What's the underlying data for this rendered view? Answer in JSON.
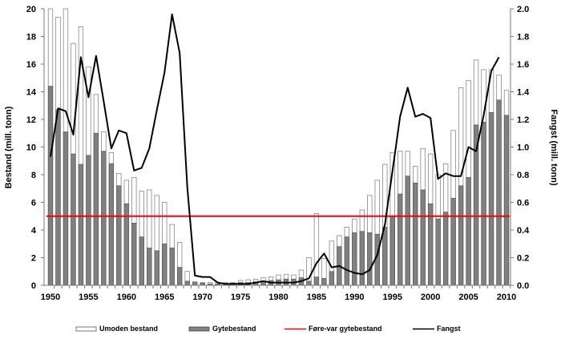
{
  "chart_data": {
    "type": "bar",
    "x": [
      1950,
      1951,
      1952,
      1953,
      1954,
      1955,
      1956,
      1957,
      1958,
      1959,
      1960,
      1961,
      1962,
      1963,
      1964,
      1965,
      1966,
      1967,
      1968,
      1969,
      1970,
      1971,
      1972,
      1973,
      1974,
      1975,
      1976,
      1977,
      1978,
      1979,
      1980,
      1981,
      1982,
      1983,
      1984,
      1985,
      1986,
      1987,
      1988,
      1989,
      1990,
      1991,
      1992,
      1993,
      1994,
      1995,
      1996,
      1997,
      1998,
      1999,
      2000,
      2001,
      2002,
      2003,
      2004,
      2005,
      2006,
      2007,
      2008,
      2009,
      2010
    ],
    "series": [
      {
        "name": "Umoden bestand",
        "kind": "bar-total-outline",
        "color": "#ffffff",
        "values": [
          21,
          19.4,
          21,
          17.5,
          18.7,
          15.8,
          13.8,
          11.1,
          9.6,
          8.1,
          7.6,
          7.8,
          6.8,
          6.9,
          6.5,
          6.0,
          4.4,
          3.1,
          1.0,
          0.25,
          0.2,
          0.2,
          0.2,
          0.2,
          0.2,
          0.35,
          0.4,
          0.45,
          0.55,
          0.6,
          0.75,
          0.8,
          0.75,
          1.1,
          2.0,
          5.2,
          1.95,
          3.2,
          3.6,
          4.2,
          4.8,
          5.45,
          6.5,
          7.6,
          8.75,
          9.6,
          9.7,
          9.7,
          8.6,
          9.9,
          9.5,
          8.0,
          8.8,
          11.2,
          14.3,
          14.8,
          16.3,
          15.6,
          15.6,
          15.2,
          14.1
        ]
      },
      {
        "name": "Gytebestand",
        "kind": "bar",
        "color": "#808080",
        "values": [
          14.4,
          12.7,
          11.1,
          9.5,
          8.75,
          9.4,
          11.0,
          9.7,
          8.8,
          7.2,
          5.9,
          4.5,
          3.5,
          2.7,
          2.5,
          3.0,
          2.7,
          1.3,
          0.3,
          0.2,
          0.15,
          0.1,
          0.1,
          0.1,
          0.15,
          0.2,
          0.2,
          0.25,
          0.3,
          0.35,
          0.4,
          0.45,
          0.45,
          0.55,
          0.3,
          0.6,
          0.5,
          1.0,
          2.8,
          3.5,
          3.8,
          3.9,
          3.8,
          3.7,
          4.2,
          5.0,
          6.6,
          7.9,
          7.4,
          6.9,
          5.9,
          4.8,
          5.3,
          6.3,
          7.2,
          7.8,
          11.6,
          11.8,
          12.5,
          13.4,
          12.3
        ]
      },
      {
        "name": "Føre-var gytebestand",
        "kind": "hline",
        "color": "#ff0000",
        "value": 5.0
      },
      {
        "name": "Fangst",
        "kind": "line",
        "axis": "right",
        "color": "#000000",
        "values": [
          0.93,
          1.28,
          1.26,
          1.09,
          1.65,
          1.36,
          1.66,
          1.33,
          0.99,
          1.12,
          1.1,
          0.83,
          0.85,
          0.99,
          1.27,
          1.54,
          1.96,
          1.68,
          0.71,
          0.07,
          0.06,
          0.06,
          0.02,
          0.01,
          0.01,
          0.01,
          0.01,
          0.02,
          0.03,
          0.02,
          0.02,
          0.02,
          0.02,
          0.03,
          0.05,
          0.16,
          0.23,
          0.13,
          0.14,
          0.11,
          0.09,
          0.08,
          0.11,
          0.22,
          0.44,
          0.83,
          1.22,
          1.43,
          1.22,
          1.24,
          1.21,
          0.77,
          0.81,
          0.79,
          0.79,
          1.0,
          0.97,
          1.23,
          1.55,
          1.65,
          null
        ]
      }
    ],
    "ylabel": "Bestand (mill. tonn)",
    "ylabel_right": "Fangst (mill. tonn)",
    "ylim": [
      0,
      20
    ],
    "ylim_right": [
      0,
      2.0
    ],
    "yticks": [
      "0",
      "2",
      "4",
      "6",
      "8",
      "10",
      "12",
      "14",
      "16",
      "18",
      "20"
    ],
    "yticks_right": [
      "0.0",
      "0.2",
      "0.4",
      "0.6",
      "0.8",
      "1.0",
      "1.2",
      "1.4",
      "1.6",
      "1.8",
      "2.0"
    ],
    "xticks": [
      "1950",
      "1955",
      "1960",
      "1965",
      "1970",
      "1975",
      "1980",
      "1985",
      "1990",
      "1995",
      "2000",
      "2005",
      "2010"
    ],
    "grid": false,
    "legend_position": "bottom"
  }
}
